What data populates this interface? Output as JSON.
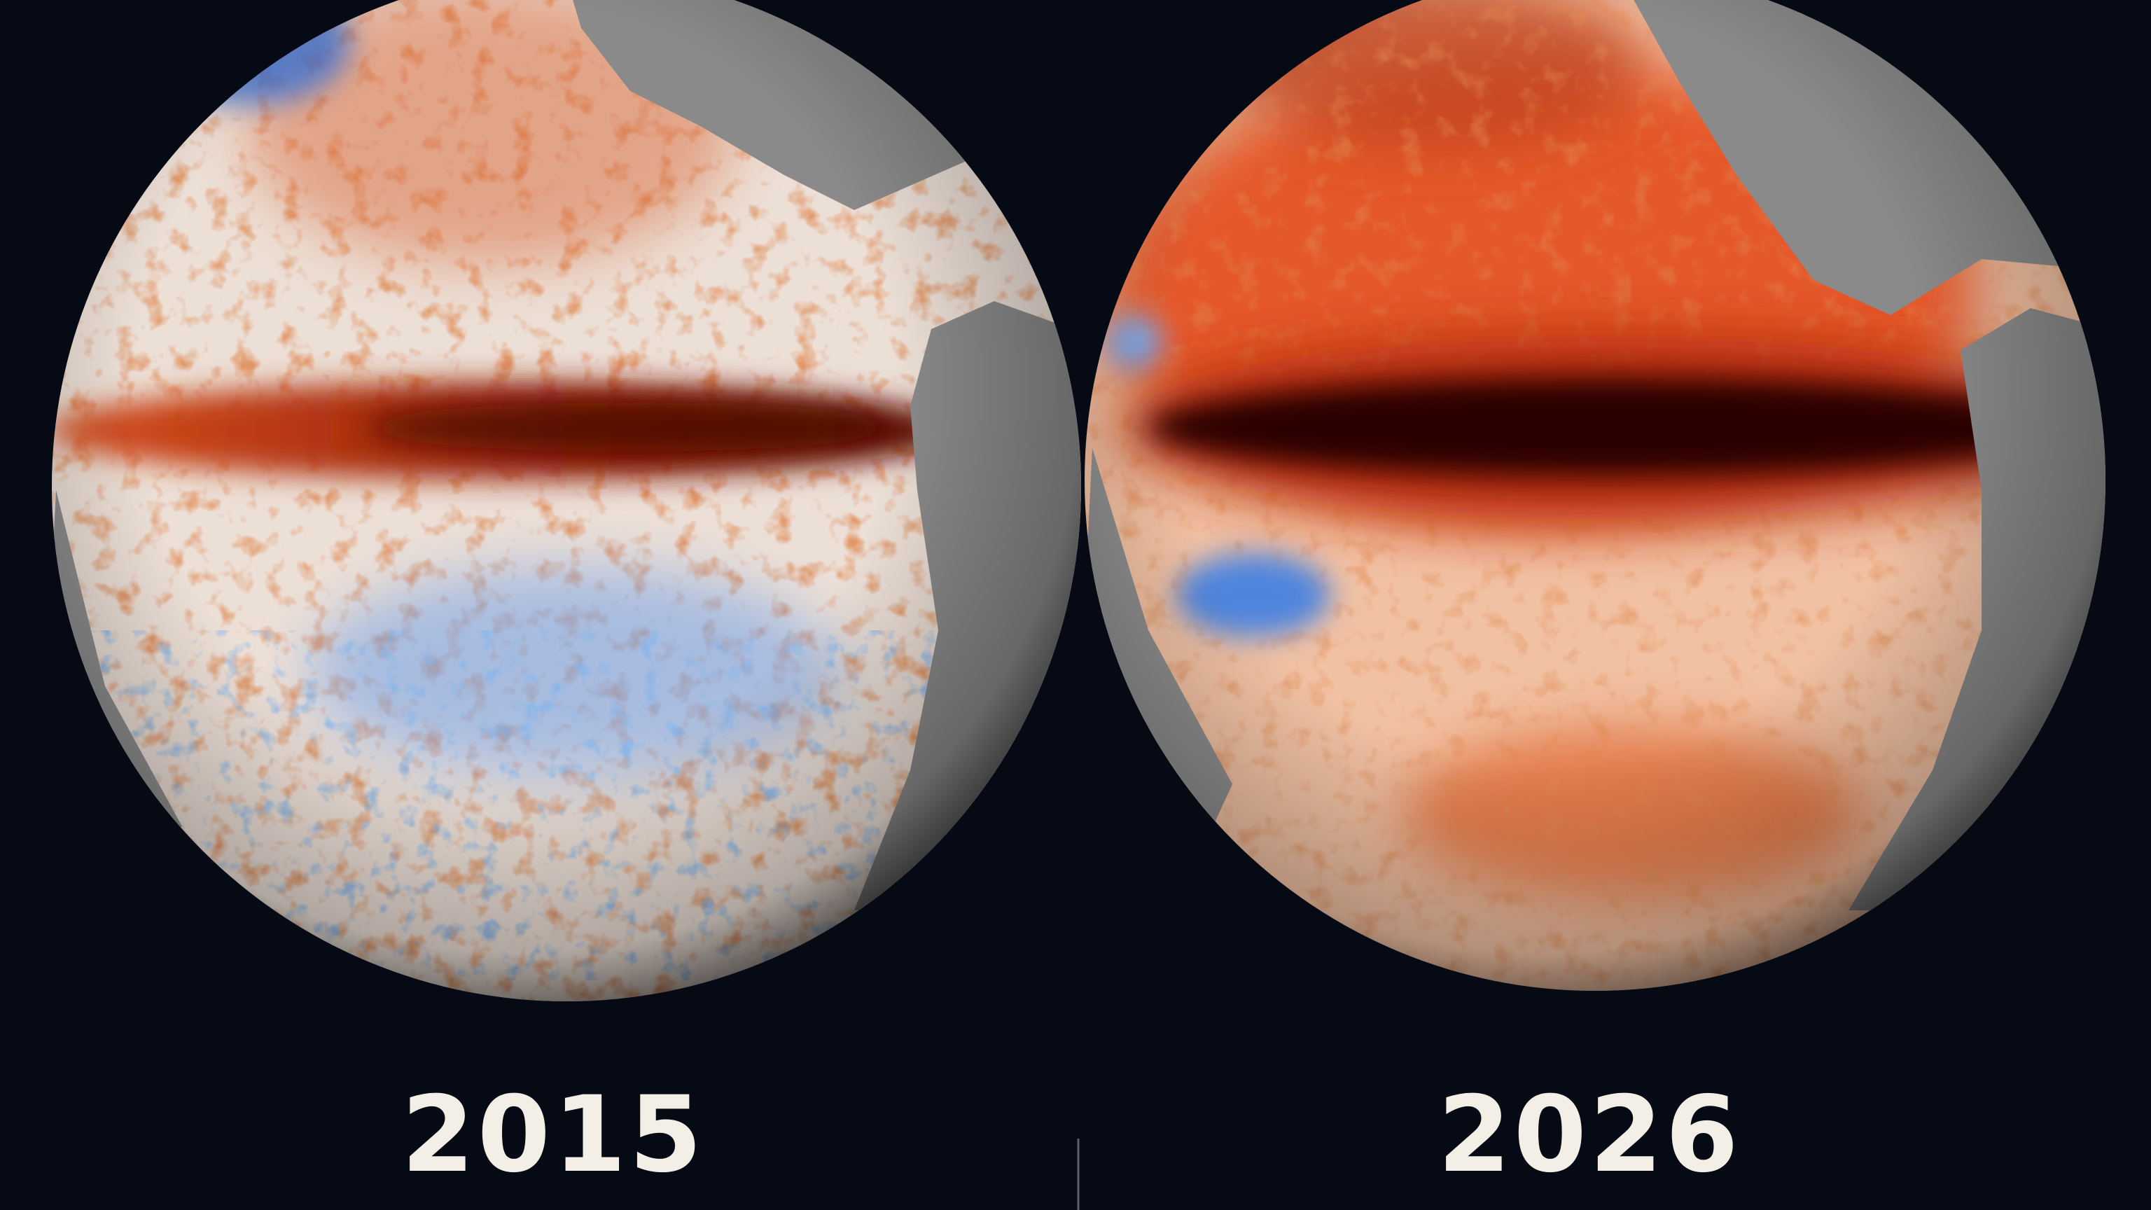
{
  "panels": [
    {
      "label": "2015"
    },
    {
      "label": "2026"
    }
  ]
}
